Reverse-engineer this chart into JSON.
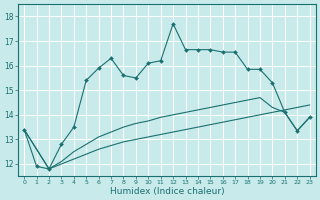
{
  "xlabel": "Humidex (Indice chaleur)",
  "bg_color": "#c8eaea",
  "grid_color": "#ffffff",
  "line_color": "#1a7070",
  "xlim": [
    -0.5,
    23.5
  ],
  "ylim": [
    11.5,
    18.5
  ],
  "yticks": [
    12,
    13,
    14,
    15,
    16,
    17,
    18
  ],
  "xticks": [
    0,
    1,
    2,
    3,
    4,
    5,
    6,
    7,
    8,
    9,
    10,
    11,
    12,
    13,
    14,
    15,
    16,
    17,
    18,
    19,
    20,
    21,
    22,
    23
  ],
  "line1_x": [
    0,
    1,
    2,
    3,
    4,
    5,
    6,
    7,
    8,
    9,
    10,
    11,
    12,
    13,
    14,
    15,
    16,
    17,
    18,
    19,
    20,
    21,
    22,
    23
  ],
  "line1_y": [
    13.4,
    11.9,
    11.8,
    12.8,
    13.5,
    15.4,
    15.9,
    16.3,
    15.6,
    15.5,
    16.1,
    16.2,
    17.7,
    16.65,
    16.65,
    16.65,
    16.55,
    16.55,
    15.85,
    15.85,
    15.3,
    14.1,
    13.35,
    13.9
  ],
  "line2_x": [
    0,
    2,
    3,
    4,
    5,
    6,
    7,
    8,
    9,
    10,
    11,
    12,
    13,
    14,
    15,
    16,
    17,
    18,
    19,
    20,
    21,
    22,
    23
  ],
  "line2_y": [
    13.4,
    11.8,
    12.1,
    12.5,
    12.8,
    13.1,
    13.3,
    13.5,
    13.65,
    13.75,
    13.9,
    14.0,
    14.1,
    14.2,
    14.3,
    14.4,
    14.5,
    14.6,
    14.7,
    14.3,
    14.1,
    13.35,
    13.9
  ],
  "line3_x": [
    0,
    2,
    3,
    4,
    5,
    6,
    7,
    8,
    9,
    10,
    11,
    12,
    13,
    14,
    15,
    16,
    17,
    18,
    19,
    20,
    21,
    22,
    23
  ],
  "line3_y": [
    13.4,
    11.8,
    12.0,
    12.2,
    12.4,
    12.6,
    12.75,
    12.9,
    13.0,
    13.1,
    13.2,
    13.3,
    13.4,
    13.5,
    13.6,
    13.7,
    13.8,
    13.9,
    14.0,
    14.1,
    14.2,
    14.3,
    14.4
  ]
}
